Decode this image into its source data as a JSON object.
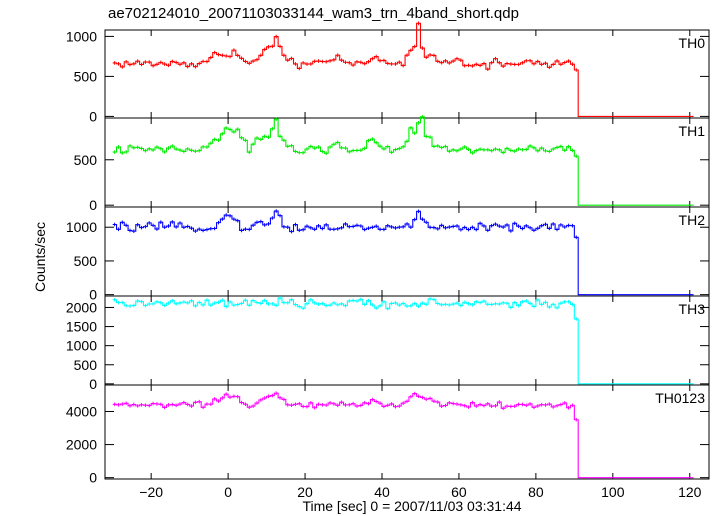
{
  "chart_data": {
    "type": "line",
    "title": "ae702124010_20071103033144_wam3_trn_4band_short.qdp",
    "xlabel": "Time [sec] 0 = 2007/11/03 03:31:44",
    "ylabel": "Counts/sec",
    "xlim": [
      -32,
      125
    ],
    "x_ticks": [
      -20,
      0,
      20,
      40,
      60,
      80,
      100,
      120
    ],
    "x_tick_labels": [
      "−20",
      "0",
      "20",
      "40",
      "60",
      "80",
      "100",
      "120"
    ],
    "bin_width": 1,
    "x_start": -30,
    "x_end": 121,
    "drop_time": 90,
    "grid": false,
    "series": [
      {
        "name": "TH0",
        "color": "#ff0000",
        "ylim": [
          -20,
          1080
        ],
        "y_ticks": [
          0,
          500,
          1000
        ],
        "baseline": 660,
        "noise": 25,
        "tail": [
          580,
          2
        ],
        "features": [
          [
            -2,
            5,
            120
          ],
          [
            1,
            2,
            80
          ],
          [
            9,
            3,
            150
          ],
          [
            12,
            2,
            260
          ],
          [
            28,
            2,
            80
          ],
          [
            37,
            2,
            100
          ],
          [
            49,
            3,
            360
          ],
          [
            53,
            1,
            80
          ],
          [
            59,
            2,
            60
          ]
        ]
      },
      {
        "name": "TH1",
        "color": "#00ee00",
        "ylim": [
          -20,
          960
        ],
        "y_ticks": [
          0,
          500
        ],
        "baseline": 610,
        "noise": 22,
        "tail": [
          540,
          2
        ],
        "features": [
          [
            -1,
            5,
            200
          ],
          [
            2,
            2,
            120
          ],
          [
            9,
            3,
            150
          ],
          [
            12,
            2,
            260
          ],
          [
            28,
            2,
            70
          ],
          [
            37,
            2,
            100
          ],
          [
            49,
            3,
            380
          ],
          [
            53,
            1,
            80
          ]
        ]
      },
      {
        "name": "TH2",
        "color": "#0000ff",
        "ylim": [
          -20,
          1300
        ],
        "y_ticks": [
          0,
          500,
          1000
        ],
        "baseline": 1000,
        "noise": 30,
        "tail": [
          850,
          2
        ],
        "features": [
          [
            -1,
            3,
            150
          ],
          [
            1,
            1,
            80
          ],
          [
            9,
            2,
            80
          ],
          [
            12,
            1,
            220
          ],
          [
            49,
            2,
            200
          ]
        ]
      },
      {
        "name": "TH3",
        "color": "#00ffff",
        "ylim": [
          -30,
          2300
        ],
        "y_ticks": [
          0,
          500,
          1000,
          1500,
          2000
        ],
        "baseline": 2100,
        "noise": 55,
        "tail": [
          1700,
          2
        ],
        "features": []
      },
      {
        "name": "TH0123",
        "color": "#ff00ff",
        "ylim": [
          -80,
          5600
        ],
        "y_ticks": [
          0,
          2000,
          4000
        ],
        "baseline": 4400,
        "noise": 90,
        "tail": [
          3500,
          2
        ],
        "features": [
          [
            -1,
            4,
            450
          ],
          [
            2,
            2,
            250
          ],
          [
            9,
            3,
            350
          ],
          [
            12,
            2,
            700
          ],
          [
            28,
            2,
            200
          ],
          [
            37,
            2,
            250
          ],
          [
            49,
            3,
            800
          ],
          [
            53,
            1,
            200
          ]
        ]
      }
    ]
  }
}
